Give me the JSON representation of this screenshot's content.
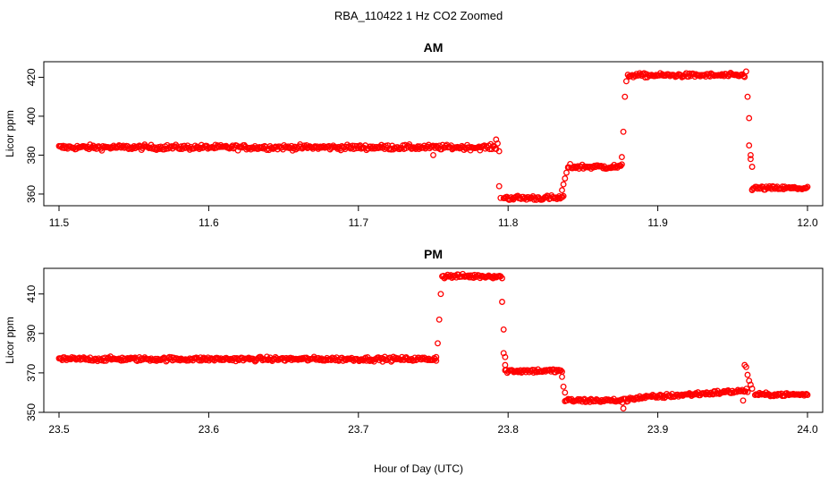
{
  "chart_data": {
    "title": "RBA_110422  1 Hz CO2 Zoomed",
    "xlabel": "Hour of Day (UTC)",
    "panels": [
      {
        "type": "scatter",
        "title": "AM",
        "ylabel": "Licor ppm",
        "xlim": [
          11.5,
          12.0
        ],
        "ylim": [
          354,
          428
        ],
        "xticks": [
          "11.5",
          "11.6",
          "11.7",
          "11.8",
          "11.9",
          "12.0"
        ],
        "yticks": [
          "360",
          "380",
          "400",
          "420"
        ],
        "segments": [
          {
            "x0": 11.5,
            "x1": 11.792,
            "y": 384,
            "noise": 1.2
          },
          {
            "x0": 11.797,
            "x1": 11.837,
            "y": 358,
            "noise": 1.2
          },
          {
            "x0": 11.84,
            "x1": 11.876,
            "y": 374,
            "noise": 1.2
          },
          {
            "x0": 11.88,
            "x1": 11.958,
            "y": 421,
            "noise": 1.0
          },
          {
            "x0": 11.963,
            "x1": 12.0,
            "y": 363,
            "noise": 1.0
          }
        ],
        "transitions": [
          {
            "x": 11.792,
            "y": 388
          },
          {
            "x": 11.793,
            "y": 386
          },
          {
            "x": 11.794,
            "y": 382
          },
          {
            "x": 11.794,
            "y": 364
          },
          {
            "x": 11.795,
            "y": 358
          },
          {
            "x": 11.836,
            "y": 362
          },
          {
            "x": 11.837,
            "y": 365
          },
          {
            "x": 11.838,
            "y": 368
          },
          {
            "x": 11.839,
            "y": 371
          },
          {
            "x": 11.876,
            "y": 379
          },
          {
            "x": 11.877,
            "y": 392
          },
          {
            "x": 11.878,
            "y": 410
          },
          {
            "x": 11.879,
            "y": 418
          },
          {
            "x": 11.959,
            "y": 423
          },
          {
            "x": 11.96,
            "y": 410
          },
          {
            "x": 11.961,
            "y": 399
          },
          {
            "x": 11.961,
            "y": 385
          },
          {
            "x": 11.962,
            "y": 380
          },
          {
            "x": 11.962,
            "y": 378
          },
          {
            "x": 11.963,
            "y": 374
          },
          {
            "x": 11.963,
            "y": 362
          },
          {
            "x": 11.75,
            "y": 380
          }
        ]
      },
      {
        "type": "scatter",
        "title": "PM",
        "ylabel": "Licor ppm",
        "xlim": [
          23.5,
          24.0
        ],
        "ylim": [
          350,
          423
        ],
        "xticks": [
          "23.5",
          "23.6",
          "23.7",
          "23.8",
          "23.9",
          "24.0"
        ],
        "yticks": [
          "350",
          "370",
          "390",
          "410"
        ],
        "segments": [
          {
            "x0": 23.5,
            "x1": 23.752,
            "y": 377,
            "noise": 1.0
          },
          {
            "x0": 23.756,
            "x1": 23.795,
            "y": 419,
            "noise": 1.0
          },
          {
            "x0": 23.798,
            "x1": 23.836,
            "y": 371,
            "noise": 1.0
          },
          {
            "x0": 23.838,
            "x1": 23.88,
            "y": 356,
            "noise": 1.0
          },
          {
            "x0": 23.88,
            "x1": 23.96,
            "y0": 357,
            "y1": 361,
            "noise": 1.0
          },
          {
            "x0": 23.965,
            "x1": 24.0,
            "y": 359,
            "noise": 0.8
          }
        ],
        "transitions": [
          {
            "x": 23.752,
            "y": 378
          },
          {
            "x": 23.753,
            "y": 385
          },
          {
            "x": 23.754,
            "y": 397
          },
          {
            "x": 23.755,
            "y": 410
          },
          {
            "x": 23.796,
            "y": 418
          },
          {
            "x": 23.796,
            "y": 406
          },
          {
            "x": 23.797,
            "y": 392
          },
          {
            "x": 23.797,
            "y": 380
          },
          {
            "x": 23.798,
            "y": 378
          },
          {
            "x": 23.798,
            "y": 374
          },
          {
            "x": 23.836,
            "y": 368
          },
          {
            "x": 23.837,
            "y": 363
          },
          {
            "x": 23.838,
            "y": 360
          },
          {
            "x": 23.877,
            "y": 352
          },
          {
            "x": 23.957,
            "y": 356
          },
          {
            "x": 23.958,
            "y": 374
          },
          {
            "x": 23.959,
            "y": 373
          },
          {
            "x": 23.96,
            "y": 369
          },
          {
            "x": 23.961,
            "y": 366
          },
          {
            "x": 23.962,
            "y": 364
          },
          {
            "x": 23.963,
            "y": 362
          }
        ]
      }
    ]
  }
}
